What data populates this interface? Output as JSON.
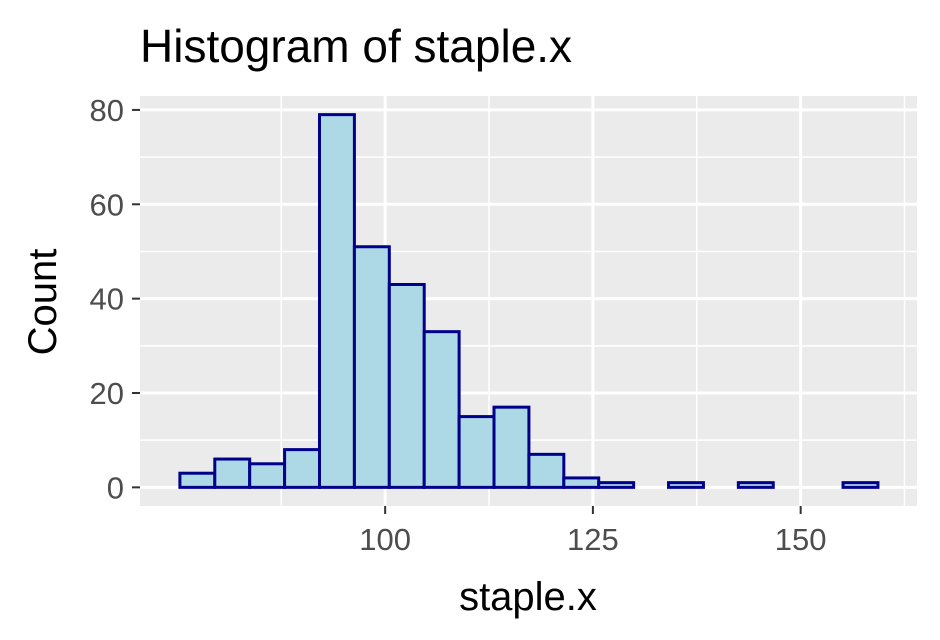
{
  "chart_data": {
    "type": "bar",
    "title": "Histogram of staple.x",
    "xlabel": "staple.x",
    "ylabel": "Count",
    "bin_width": 4.2,
    "bins": [
      {
        "x0": 75.3,
        "x1": 79.5,
        "count": 3
      },
      {
        "x0": 79.5,
        "x1": 83.7,
        "count": 6
      },
      {
        "x0": 83.7,
        "x1": 87.9,
        "count": 5
      },
      {
        "x0": 87.9,
        "x1": 92.1,
        "count": 8
      },
      {
        "x0": 92.1,
        "x1": 96.3,
        "count": 79
      },
      {
        "x0": 96.3,
        "x1": 100.5,
        "count": 51
      },
      {
        "x0": 100.5,
        "x1": 104.7,
        "count": 43
      },
      {
        "x0": 104.7,
        "x1": 108.9,
        "count": 33
      },
      {
        "x0": 108.9,
        "x1": 113.1,
        "count": 15
      },
      {
        "x0": 113.1,
        "x1": 117.3,
        "count": 17
      },
      {
        "x0": 117.3,
        "x1": 121.5,
        "count": 7
      },
      {
        "x0": 121.5,
        "x1": 125.7,
        "count": 2
      },
      {
        "x0": 125.7,
        "x1": 129.9,
        "count": 1
      },
      {
        "x0": 129.9,
        "x1": 134.1,
        "count": 0
      },
      {
        "x0": 134.1,
        "x1": 138.3,
        "count": 1
      },
      {
        "x0": 138.3,
        "x1": 142.5,
        "count": 0
      },
      {
        "x0": 142.5,
        "x1": 146.7,
        "count": 1
      },
      {
        "x0": 146.7,
        "x1": 150.9,
        "count": 0
      },
      {
        "x0": 150.9,
        "x1": 155.1,
        "count": 0
      },
      {
        "x0": 155.1,
        "x1": 159.3,
        "count": 1
      }
    ],
    "xlim": [
      70.5,
      164.0
    ],
    "ylim": [
      -3.95,
      82.95
    ],
    "x_ticks": [
      100,
      125,
      150
    ],
    "x_tick_labels": [
      "100",
      "125",
      "150"
    ],
    "x_minor_ticks": [
      87.5,
      112.5,
      137.5,
      162.5
    ],
    "y_ticks": [
      0,
      20,
      40,
      60,
      80
    ],
    "y_tick_labels": [
      "0",
      "20",
      "40",
      "60",
      "80"
    ],
    "y_minor_ticks": [
      10,
      30,
      50,
      70
    ],
    "grid": true,
    "legend": "none",
    "colors": {
      "panel": "#ebebeb",
      "grid": "#ffffff",
      "bar_fill": "#add8e6",
      "bar_stroke": "#00008b",
      "axis_text": "#4d4d4d",
      "axis_tick": "#333333"
    }
  }
}
